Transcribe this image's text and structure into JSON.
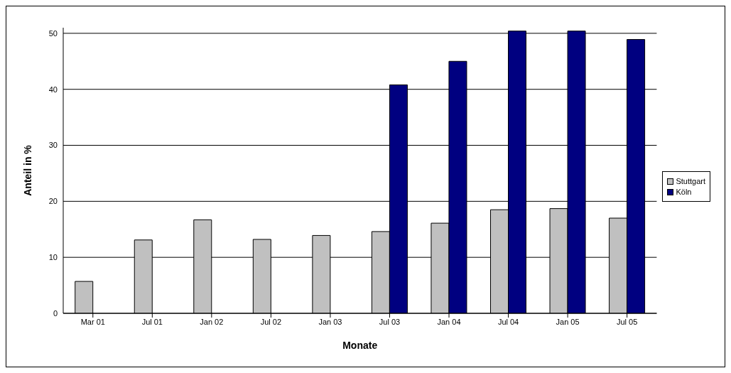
{
  "chart_data": {
    "type": "bar",
    "xlabel": "Monate",
    "ylabel": "Anteil in %",
    "categories": [
      "Mar 01",
      "Jul 01",
      "Jan 02",
      "Jul 02",
      "Jan 03",
      "Jul 03",
      "Jan 04",
      "Jul 04",
      "Jan 05",
      "Jul 05"
    ],
    "series": [
      {
        "name": "Stuttgart",
        "color": "#c0c0c0",
        "values": [
          5.7,
          13.1,
          16.7,
          13.2,
          13.9,
          14.6,
          16.1,
          18.5,
          18.7,
          17.0
        ]
      },
      {
        "name": "Köln",
        "color": "#000080",
        "values": [
          null,
          null,
          null,
          null,
          null,
          40.8,
          45.0,
          50.4,
          50.4,
          48.9
        ]
      }
    ],
    "ylim": [
      0,
      51
    ],
    "yticks": [
      0,
      10,
      20,
      30,
      40,
      50
    ],
    "grid": "y",
    "legend": "right"
  }
}
